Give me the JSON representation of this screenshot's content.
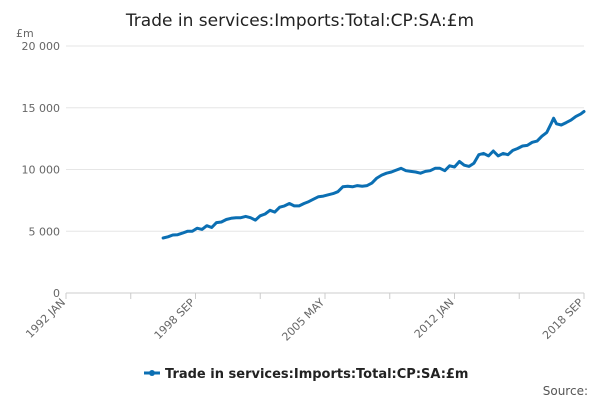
{
  "chart_data": {
    "type": "line",
    "title": "Trade in services:Imports:Total:CP:SA:£m",
    "ylabel": "£m",
    "ylim": [
      0,
      20000
    ],
    "yticks": [
      0,
      5000,
      10000,
      15000,
      20000
    ],
    "ytick_labels": [
      "0",
      "5 000",
      "10 000",
      "15 000",
      "20 000"
    ],
    "xlim": [
      1992.0,
      2018.667
    ],
    "xtick_labels": [
      {
        "label": "1992 JAN",
        "x": 1992.0
      },
      {
        "label": "1998 SEP",
        "x": 1998.667
      },
      {
        "label": "2005 MAY",
        "x": 2005.333
      },
      {
        "label": "2012 JAN",
        "x": 2012.0
      },
      {
        "label": "2018 SEP",
        "x": 2018.667
      }
    ],
    "minor_ticks": [
      1992.0,
      1995.333,
      1998.667,
      2002.0,
      2005.333,
      2008.667,
      2012.0,
      2015.333,
      2018.667
    ],
    "series": [
      {
        "name": "Trade in services:Imports:Total:CP:SA:£m",
        "color": "#0b6fb3",
        "points": [
          [
            1997.0,
            4450
          ],
          [
            1997.25,
            4550
          ],
          [
            1997.5,
            4700
          ],
          [
            1997.75,
            4720
          ],
          [
            1998.0,
            4850
          ],
          [
            1998.25,
            5000
          ],
          [
            1998.5,
            5000
          ],
          [
            1998.75,
            5250
          ],
          [
            1999.0,
            5150
          ],
          [
            1999.25,
            5450
          ],
          [
            1999.5,
            5300
          ],
          [
            1999.75,
            5700
          ],
          [
            2000.0,
            5750
          ],
          [
            2000.25,
            5950
          ],
          [
            2000.5,
            6050
          ],
          [
            2000.75,
            6100
          ],
          [
            2001.0,
            6100
          ],
          [
            2001.25,
            6200
          ],
          [
            2001.5,
            6100
          ],
          [
            2001.75,
            5900
          ],
          [
            2002.0,
            6250
          ],
          [
            2002.25,
            6400
          ],
          [
            2002.5,
            6700
          ],
          [
            2002.75,
            6550
          ],
          [
            2003.0,
            6950
          ],
          [
            2003.25,
            7050
          ],
          [
            2003.5,
            7250
          ],
          [
            2003.75,
            7050
          ],
          [
            2004.0,
            7050
          ],
          [
            2004.25,
            7250
          ],
          [
            2004.5,
            7400
          ],
          [
            2004.75,
            7600
          ],
          [
            2005.0,
            7800
          ],
          [
            2005.25,
            7850
          ],
          [
            2005.5,
            7950
          ],
          [
            2005.75,
            8050
          ],
          [
            2006.0,
            8200
          ],
          [
            2006.25,
            8600
          ],
          [
            2006.5,
            8650
          ],
          [
            2006.75,
            8600
          ],
          [
            2007.0,
            8700
          ],
          [
            2007.25,
            8650
          ],
          [
            2007.5,
            8700
          ],
          [
            2007.75,
            8900
          ],
          [
            2008.0,
            9300
          ],
          [
            2008.25,
            9550
          ],
          [
            2008.5,
            9700
          ],
          [
            2008.75,
            9800
          ],
          [
            2009.0,
            9950
          ],
          [
            2009.25,
            10100
          ],
          [
            2009.5,
            9900
          ],
          [
            2009.75,
            9850
          ],
          [
            2010.0,
            9800
          ],
          [
            2010.25,
            9700
          ],
          [
            2010.5,
            9850
          ],
          [
            2010.75,
            9900
          ],
          [
            2011.0,
            10100
          ],
          [
            2011.25,
            10100
          ],
          [
            2011.5,
            9900
          ],
          [
            2011.75,
            10300
          ],
          [
            2012.0,
            10200
          ],
          [
            2012.25,
            10650
          ],
          [
            2012.5,
            10350
          ],
          [
            2012.75,
            10250
          ],
          [
            2013.0,
            10500
          ],
          [
            2013.25,
            11200
          ],
          [
            2013.5,
            11300
          ],
          [
            2013.75,
            11100
          ],
          [
            2014.0,
            11500
          ],
          [
            2014.25,
            11100
          ],
          [
            2014.5,
            11300
          ],
          [
            2014.75,
            11200
          ],
          [
            2015.0,
            11550
          ],
          [
            2015.25,
            11700
          ],
          [
            2015.5,
            11900
          ],
          [
            2015.75,
            11950
          ],
          [
            2016.0,
            12200
          ],
          [
            2016.25,
            12300
          ],
          [
            2016.5,
            12700
          ],
          [
            2016.75,
            13000
          ],
          [
            2017.0,
            13800
          ],
          [
            2017.1,
            14150
          ],
          [
            2017.25,
            13700
          ],
          [
            2017.5,
            13600
          ],
          [
            2017.75,
            13800
          ],
          [
            2018.0,
            14000
          ],
          [
            2018.25,
            14300
          ],
          [
            2018.5,
            14500
          ],
          [
            2018.667,
            14700
          ]
        ]
      }
    ],
    "legend": {
      "label": "Trade in services:Imports:Total:CP:SA:£m",
      "position": "bottom-center"
    },
    "source_label": "Source:",
    "grid": true
  }
}
